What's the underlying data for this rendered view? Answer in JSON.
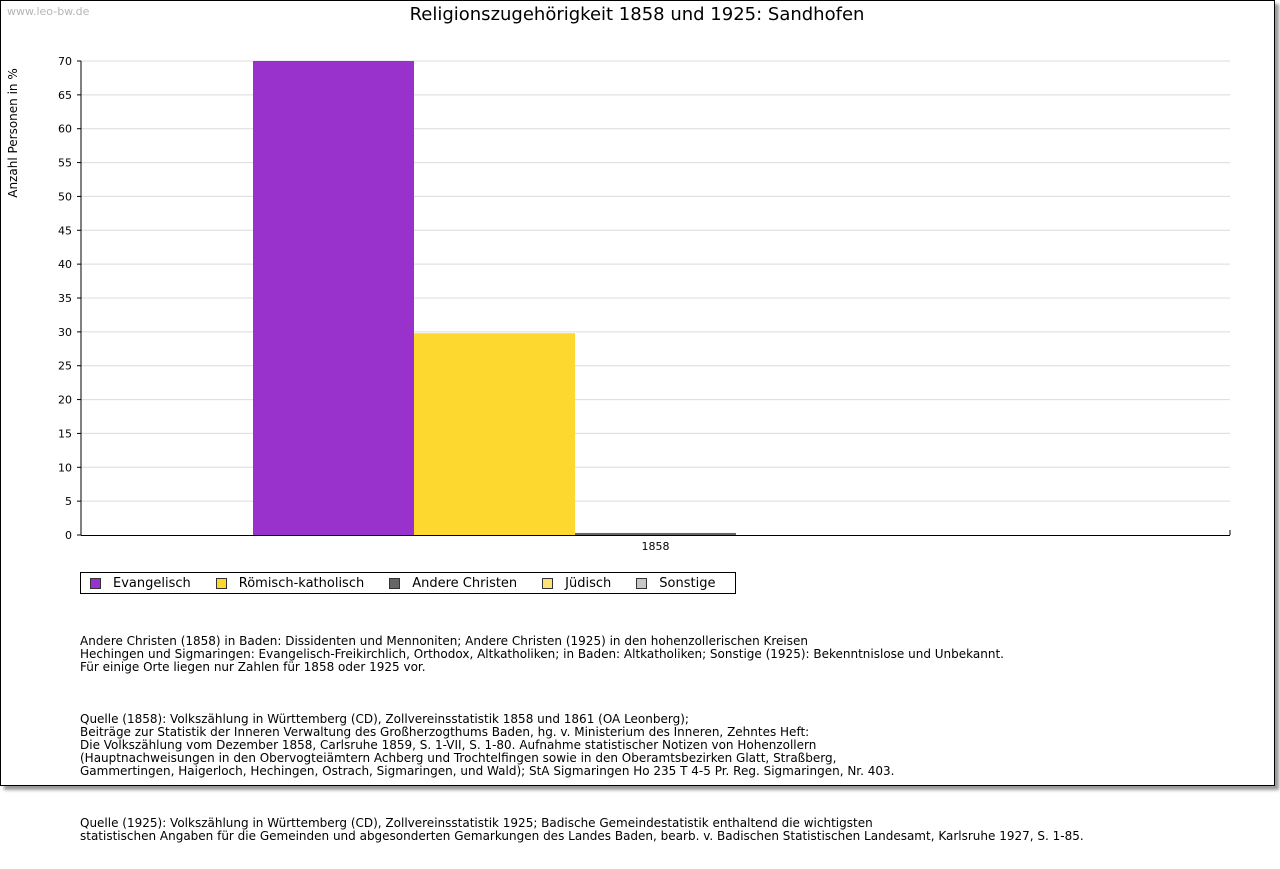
{
  "watermark": "www.leo-bw.de",
  "chart_data": {
    "type": "bar",
    "title": "Religionszugehörigkeit 1858 und 1925: Sandhofen",
    "xlabel": "",
    "ylabel": "Anzahl Personen in %",
    "ylim": [
      0,
      70
    ],
    "yticks": [
      "0",
      "5",
      "10",
      "15",
      "20",
      "25",
      "30",
      "35",
      "40",
      "45",
      "50",
      "55",
      "60",
      "65",
      "70"
    ],
    "categories": [
      "1858"
    ],
    "grid": true,
    "legend_position": "bottom-left",
    "series": [
      {
        "name": "Evangelisch",
        "color": "#9932CC",
        "values": [
          70.0
        ]
      },
      {
        "name": "Römisch-katholisch",
        "color": "#FDD82E",
        "values": [
          29.8
        ]
      },
      {
        "name": "Andere Christen",
        "color": "#666666",
        "values": [
          0.3
        ]
      },
      {
        "name": "Jüdisch",
        "color": "#FBE37A",
        "values": [
          0
        ]
      },
      {
        "name": "Sonstige",
        "color": "#C8C8C8",
        "values": [
          0
        ]
      }
    ]
  },
  "notes": [
    "Andere Christen (1858) in Baden: Dissidenten und Mennoniten; Andere Christen (1925) in den hohenzollerischen Kreisen\nHechingen und Sigmaringen: Evangelisch-Freikirchlich, Orthodox, Altkatholiken; in Baden: Altkatholiken; Sonstige (1925): Bekenntnislose und Unbekannt.\nFür einige Orte liegen nur Zahlen für 1858 oder 1925 vor.",
    "Quelle (1858): Volkszählung in Württemberg (CD), Zollvereinsstatistik 1858 und 1861 (OA Leonberg);\nBeiträge zur Statistik der Inneren Verwaltung des Großherzogthums Baden, hg. v. Ministerium des Inneren, Zehntes Heft:\nDie Volkszählung vom Dezember 1858, Carlsruhe 1859, S. 1-VII, S. 1-80. Aufnahme statistischer Notizen von Hohenzollern\n(Hauptnachweisungen in den Obervogteiämtern Achberg und Trochtelfingen sowie in den Oberamtsbezirken Glatt, Straßberg,\nGammertingen, Haigerloch, Hechingen, Ostrach, Sigmaringen, und Wald); StA Sigmaringen Ho 235 T 4-5 Pr. Reg. Sigmaringen, Nr. 403.",
    "Quelle (1925): Volkszählung in Württemberg (CD), Zollvereinsstatistik 1925; Badische Gemeindestatistik enthaltend die wichtigsten\nstatistischen Angaben für die Gemeinden und abgesonderten Gemarkungen des Landes Baden, bearb. v. Badischen Statistischen Landesamt, Karlsruhe 1927, S. 1-85."
  ]
}
